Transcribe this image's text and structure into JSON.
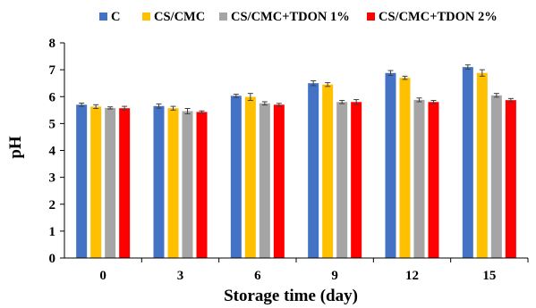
{
  "chart_data": {
    "type": "bar",
    "title": "",
    "xlabel": "Storage time (day)",
    "ylabel": "pH",
    "categories": [
      "0",
      "3",
      "6",
      "9",
      "12",
      "15"
    ],
    "ylim": [
      0,
      8
    ],
    "yticks": [
      "0",
      "1",
      "2",
      "3",
      "4",
      "5",
      "6",
      "7",
      "8"
    ],
    "grid": false,
    "legend_position": "top",
    "series": [
      {
        "name": "C",
        "color": "#4472C4",
        "values": [
          5.7,
          5.65,
          6.03,
          6.5,
          6.88,
          7.1
        ],
        "errors": [
          0.06,
          0.08,
          0.06,
          0.09,
          0.09,
          0.08
        ]
      },
      {
        "name": "CS/CMC",
        "color": "#FFC000",
        "values": [
          5.63,
          5.57,
          5.99,
          6.45,
          6.7,
          6.88
        ],
        "errors": [
          0.07,
          0.07,
          0.13,
          0.07,
          0.06,
          0.12
        ]
      },
      {
        "name": "CS/CMC+TDON 1%",
        "color": "#A5A5A5",
        "values": [
          5.58,
          5.46,
          5.75,
          5.8,
          5.88,
          6.05
        ],
        "errors": [
          0.04,
          0.1,
          0.06,
          0.06,
          0.07,
          0.07
        ]
      },
      {
        "name": "CS/CMC+TDON 2%",
        "color": "#FF0000",
        "values": [
          5.57,
          5.43,
          5.7,
          5.8,
          5.8,
          5.87
        ],
        "errors": [
          0.07,
          0.04,
          0.05,
          0.09,
          0.06,
          0.06
        ]
      }
    ]
  }
}
